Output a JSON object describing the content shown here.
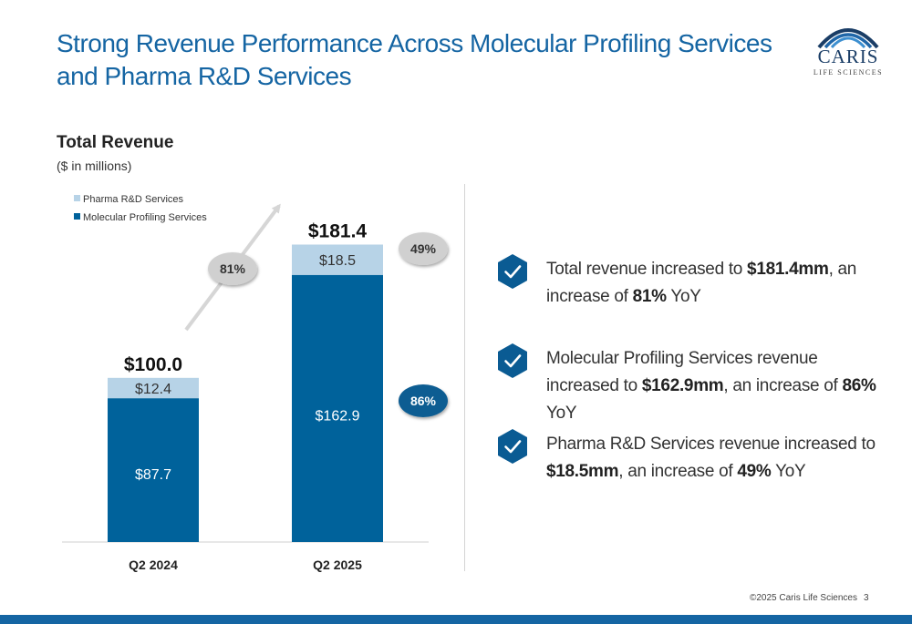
{
  "slide": {
    "title_line1": "Strong Revenue Performance Across Molecular Profiling Services",
    "title_line2": "and Pharma R&D Services",
    "chart_title": "Total Revenue",
    "chart_subtitle": "($ in millions)",
    "footer": "©2025 Caris Life Sciences",
    "page_number": "3"
  },
  "logo": {
    "name": "CARIS",
    "sub": "LIFE SCIENCES"
  },
  "colors": {
    "title": "#1565a3",
    "molecular": "#00629b",
    "pharma": "#b7d3e7",
    "badge_gray": "#d0d0d0",
    "badge_blue": "#0f5d92",
    "hexagon": "#0a5b93",
    "footer_bar": "#1565a3"
  },
  "chart_data": {
    "type": "bar",
    "stacked": true,
    "categories": [
      "Q2 2024",
      "Q2 2025"
    ],
    "series": [
      {
        "name": "Molecular Profiling Services",
        "values": [
          87.7,
          162.9
        ],
        "labels": [
          "$87.7",
          "$162.9"
        ]
      },
      {
        "name": "Pharma R&D Services",
        "values": [
          12.4,
          18.5
        ],
        "labels": [
          "$12.4",
          "$18.5"
        ]
      }
    ],
    "totals": [
      100.0,
      181.4
    ],
    "total_labels": [
      "$100.0",
      "$181.4"
    ],
    "legend_order": [
      "Pharma R&D Services",
      "Molecular Profiling Services"
    ],
    "legend_position": "top-left",
    "growth": {
      "total": "81%",
      "pharma": "49%",
      "molecular": "86%"
    },
    "ylim": [
      0,
      200
    ]
  },
  "bullets": [
    {
      "parts": [
        {
          "t": "Total revenue increased to "
        },
        {
          "t": "$181.4mm",
          "b": true
        },
        {
          "t": ", an increase of "
        },
        {
          "t": "81%",
          "b": true
        },
        {
          "t": " YoY"
        }
      ]
    },
    {
      "parts": [
        {
          "t": "Molecular Profiling Services revenue increased to "
        },
        {
          "t": "$162.9mm",
          "b": true
        },
        {
          "t": ", an increase of "
        },
        {
          "t": "86%",
          "b": true
        },
        {
          "t": " YoY"
        }
      ]
    },
    {
      "parts": [
        {
          "t": "Pharma R&D Services revenue increased to "
        },
        {
          "t": "$18.5mm",
          "b": true
        },
        {
          "t": ", an increase of "
        },
        {
          "t": "49%",
          "b": true
        },
        {
          "t": " YoY"
        }
      ]
    }
  ]
}
